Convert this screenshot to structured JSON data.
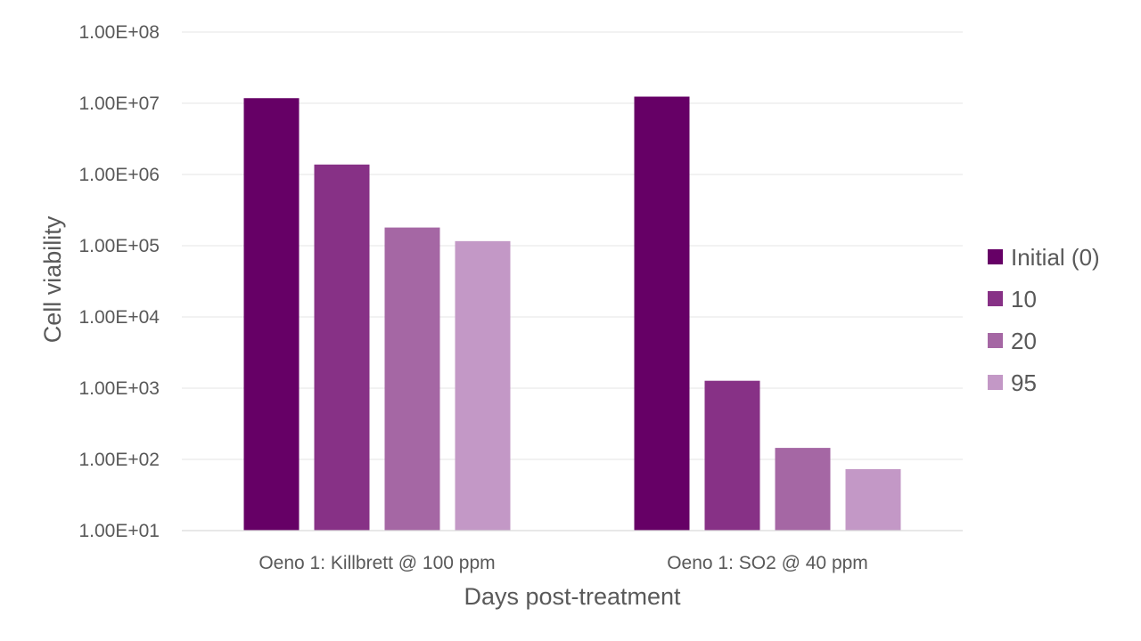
{
  "chart_data": {
    "type": "bar",
    "title": "",
    "xlabel": "Days post-treatment",
    "ylabel": "Cell viability",
    "yscale": "log",
    "ylim": [
      10,
      100000000
    ],
    "yticks": [
      "1.00E+01",
      "1.00E+02",
      "1.00E+03",
      "1.00E+04",
      "1.00E+05",
      "1.00E+06",
      "1.00E+07",
      "1.00E+08"
    ],
    "categories": [
      "Oeno 1: Killbrett @ 100 ppm",
      "Oeno 1: SO2 @ 40 ppm"
    ],
    "series": [
      {
        "name": "Initial (0)",
        "color": "#660066",
        "values": [
          11800000,
          12400000
        ]
      },
      {
        "name": "10",
        "color": "#873186",
        "values": [
          1380000,
          1270
        ]
      },
      {
        "name": "20",
        "color": "#a567a4",
        "values": [
          180000,
          145
        ]
      },
      {
        "name": "95",
        "color": "#c398c6",
        "values": [
          116000,
          73
        ]
      }
    ],
    "grid": true,
    "legend_position": "right"
  }
}
